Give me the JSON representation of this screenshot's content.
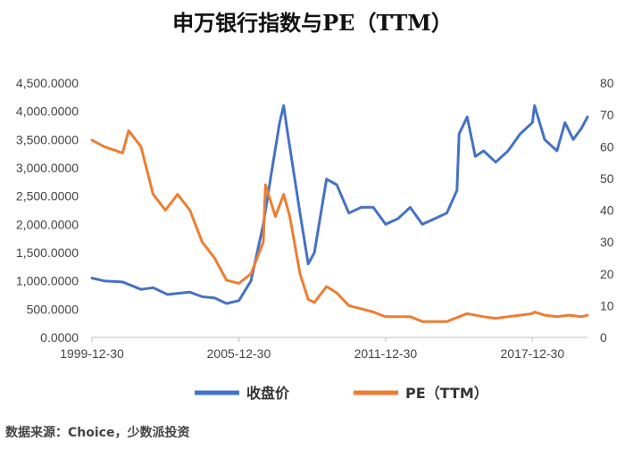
{
  "title": "申万银行指数与PE（TTM）",
  "source": "数据来源：Choice，少数派投资",
  "colors": {
    "close": "#4472C4",
    "pe": "#ED7D31"
  },
  "chart_data": {
    "type": "line",
    "title": "申万银行指数与PE（TTM）",
    "x_ticks": [
      "1999-12-30",
      "2005-12-30",
      "2011-12-30",
      "2017-12-30"
    ],
    "x_range": [
      "1999-12-30",
      "2020-03-31"
    ],
    "y_left": {
      "range": [
        0,
        4500
      ],
      "ticks": [
        "0.0000",
        "500.0000",
        "1,000.0000",
        "1,500.0000",
        "2,000.0000",
        "2,500.0000",
        "3,000.0000",
        "3,500.0000",
        "4,000.0000",
        "4,500.0000"
      ]
    },
    "y_right": {
      "range": [
        0,
        80
      ],
      "ticks": [
        "0",
        "10",
        "20",
        "30",
        "40",
        "50",
        "60",
        "70",
        "80"
      ]
    },
    "grid": false,
    "legend_position": "bottom",
    "series": [
      {
        "name": "收盘价",
        "axis": "left",
        "points": [
          [
            "1999-12-30",
            1050
          ],
          [
            "2000-06-30",
            1000
          ],
          [
            "2001-03-31",
            980
          ],
          [
            "2001-12-31",
            850
          ],
          [
            "2002-06-30",
            880
          ],
          [
            "2003-01-31",
            760
          ],
          [
            "2003-12-31",
            800
          ],
          [
            "2004-06-30",
            720
          ],
          [
            "2004-12-31",
            700
          ],
          [
            "2005-06-30",
            600
          ],
          [
            "2005-12-30",
            650
          ],
          [
            "2006-06-30",
            1000
          ],
          [
            "2006-12-31",
            2000
          ],
          [
            "2007-04-30",
            2900
          ],
          [
            "2007-08-31",
            3800
          ],
          [
            "2007-10-31",
            4100
          ],
          [
            "2007-12-31",
            3600
          ],
          [
            "2008-06-30",
            2200
          ],
          [
            "2008-10-31",
            1300
          ],
          [
            "2009-01-31",
            1500
          ],
          [
            "2009-07-31",
            2800
          ],
          [
            "2009-12-31",
            2700
          ],
          [
            "2010-06-30",
            2200
          ],
          [
            "2010-12-31",
            2300
          ],
          [
            "2011-06-30",
            2300
          ],
          [
            "2011-12-30",
            2000
          ],
          [
            "2012-06-30",
            2100
          ],
          [
            "2012-12-31",
            2300
          ],
          [
            "2013-06-30",
            2000
          ],
          [
            "2013-12-31",
            2100
          ],
          [
            "2014-06-30",
            2200
          ],
          [
            "2014-11-30",
            2600
          ],
          [
            "2014-12-31",
            3600
          ],
          [
            "2015-04-30",
            3900
          ],
          [
            "2015-08-31",
            3200
          ],
          [
            "2015-12-31",
            3300
          ],
          [
            "2016-06-30",
            3100
          ],
          [
            "2016-12-31",
            3300
          ],
          [
            "2017-06-30",
            3600
          ],
          [
            "2017-12-30",
            3800
          ],
          [
            "2018-01-31",
            4100
          ],
          [
            "2018-06-30",
            3500
          ],
          [
            "2018-12-31",
            3300
          ],
          [
            "2019-04-30",
            3800
          ],
          [
            "2019-08-31",
            3500
          ],
          [
            "2019-12-31",
            3700
          ],
          [
            "2020-03-31",
            3900
          ]
        ]
      },
      {
        "name": "PE（TTM）",
        "axis": "right",
        "points": [
          [
            "1999-12-30",
            62
          ],
          [
            "2000-06-30",
            60
          ],
          [
            "2001-03-31",
            58
          ],
          [
            "2001-06-30",
            65
          ],
          [
            "2001-12-31",
            60
          ],
          [
            "2002-06-30",
            45
          ],
          [
            "2002-12-31",
            40
          ],
          [
            "2003-06-30",
            45
          ],
          [
            "2003-12-31",
            40
          ],
          [
            "2004-06-30",
            30
          ],
          [
            "2004-12-31",
            25
          ],
          [
            "2005-06-30",
            18
          ],
          [
            "2005-12-30",
            17
          ],
          [
            "2006-06-30",
            20
          ],
          [
            "2006-12-31",
            30
          ],
          [
            "2007-01-31",
            48
          ],
          [
            "2007-06-30",
            38
          ],
          [
            "2007-10-31",
            45
          ],
          [
            "2008-01-31",
            38
          ],
          [
            "2008-06-30",
            20
          ],
          [
            "2008-10-31",
            12
          ],
          [
            "2009-01-31",
            11
          ],
          [
            "2009-07-31",
            16
          ],
          [
            "2009-12-31",
            14
          ],
          [
            "2010-06-30",
            10
          ],
          [
            "2010-12-31",
            9
          ],
          [
            "2011-06-30",
            8
          ],
          [
            "2011-12-30",
            6.5
          ],
          [
            "2012-06-30",
            6.5
          ],
          [
            "2012-12-31",
            6.5
          ],
          [
            "2013-06-30",
            5
          ],
          [
            "2013-12-31",
            5
          ],
          [
            "2014-06-30",
            5
          ],
          [
            "2014-12-31",
            6.5
          ],
          [
            "2015-04-30",
            7.5
          ],
          [
            "2015-12-31",
            6.5
          ],
          [
            "2016-06-30",
            6
          ],
          [
            "2016-12-31",
            6.5
          ],
          [
            "2017-06-30",
            7
          ],
          [
            "2017-12-30",
            7.5
          ],
          [
            "2018-01-31",
            8
          ],
          [
            "2018-06-30",
            7
          ],
          [
            "2018-12-31",
            6.5
          ],
          [
            "2019-06-30",
            7
          ],
          [
            "2019-12-31",
            6.5
          ],
          [
            "2020-03-31",
            7
          ]
        ]
      }
    ]
  }
}
